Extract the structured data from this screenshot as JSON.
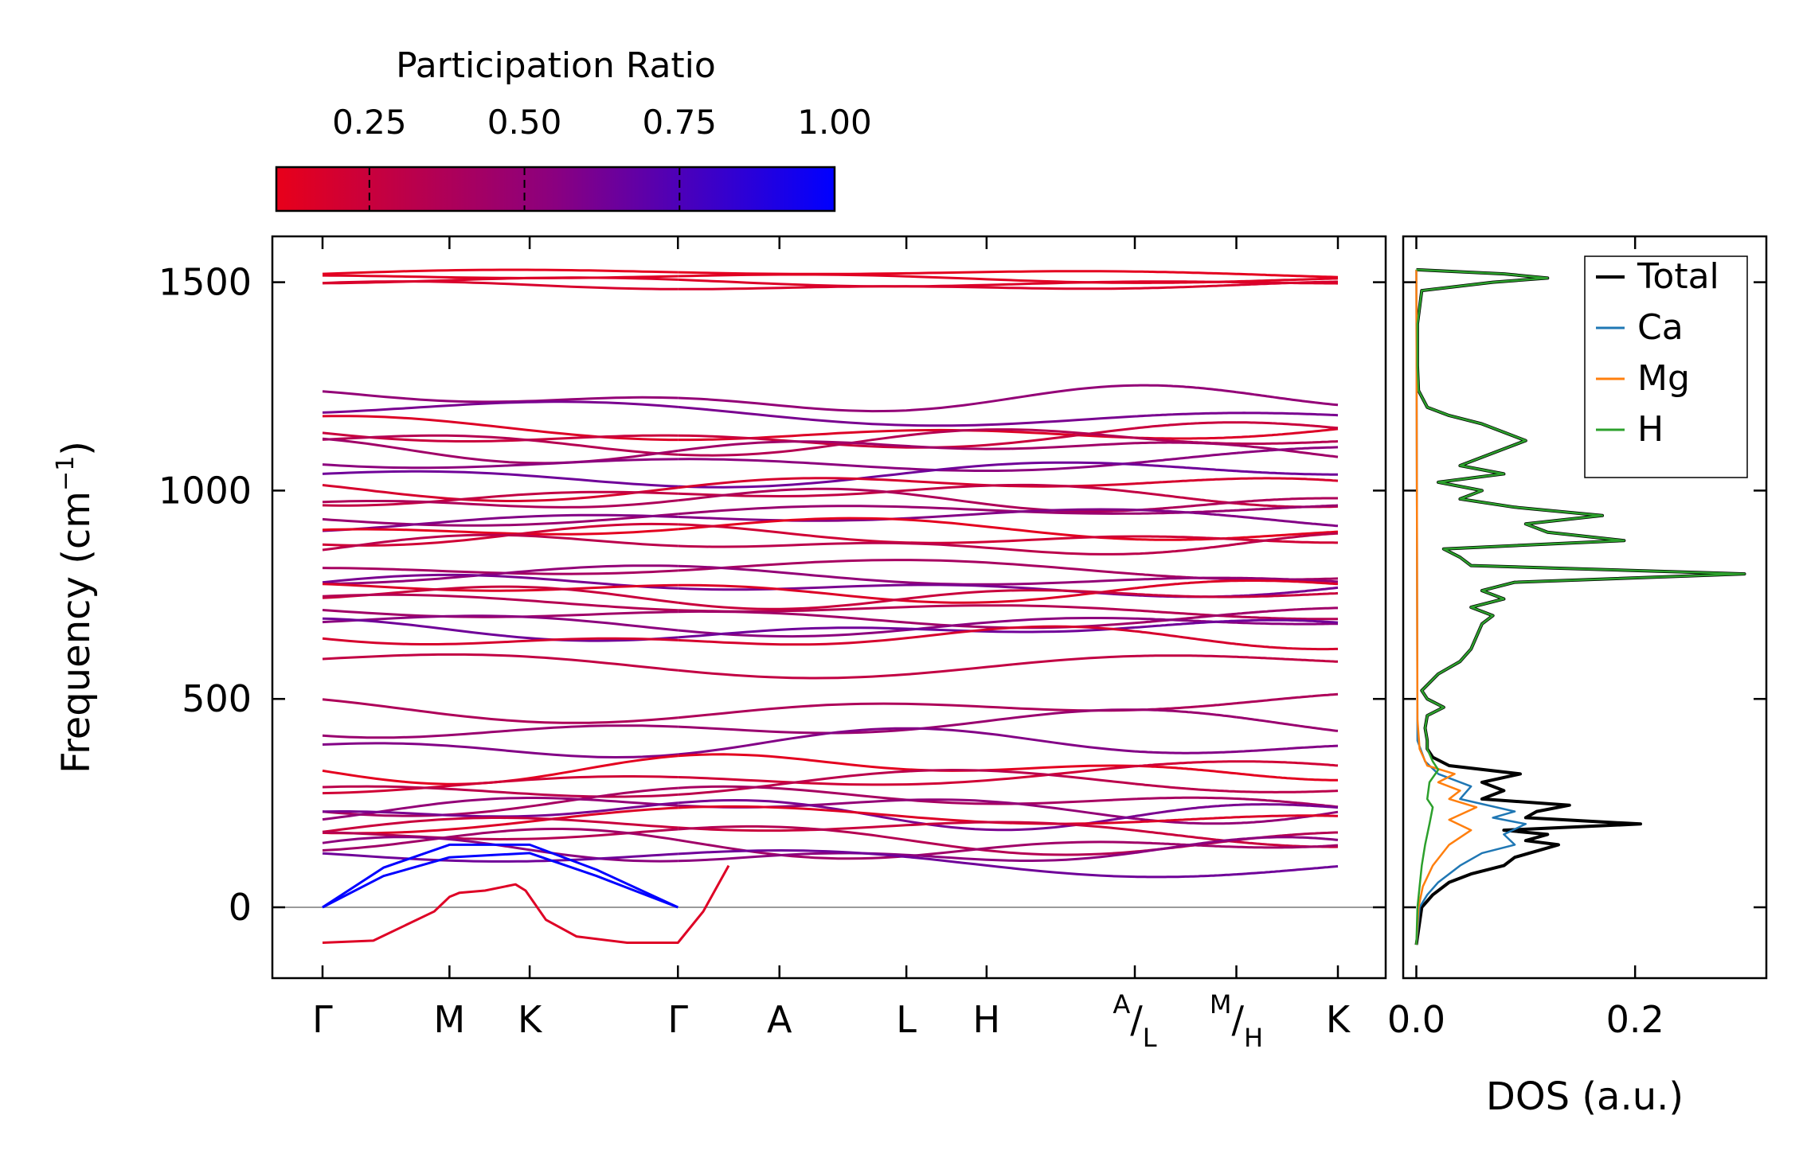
{
  "chart_data": [
    {
      "type": "line",
      "kind": "phonon-band-structure",
      "ylabel": "Frequency (cm⁻¹)",
      "ylabel_main": "Frequency (cm",
      "ylabel_sup": "−1",
      "ylabel_end": ")",
      "ylim": [
        -170,
        1610
      ],
      "yticks": [
        0,
        500,
        1000,
        1500
      ],
      "ytick_labels": [
        "0",
        "500",
        "1000",
        "1500"
      ],
      "path_labels": [
        {
          "label": "Γ",
          "q": 0.0
        },
        {
          "label": "M",
          "q": 0.125
        },
        {
          "label": "K",
          "q": 0.204
        },
        {
          "label": "Γ",
          "q": 0.35
        },
        {
          "label": "A",
          "q": 0.45
        },
        {
          "label": "L",
          "q": 0.575
        },
        {
          "label": "H",
          "q": 0.654
        },
        {
          "label": "A",
          "label_sub": "L",
          "q": 0.8
        },
        {
          "label": "M",
          "label_sub": "H",
          "q": 0.9
        },
        {
          "label": "K",
          "q": 1.0
        }
      ],
      "segment_breaks": [
        0.35,
        0.8,
        0.9
      ],
      "colorbar": {
        "label": "Participation Ratio",
        "ticks": [
          0.25,
          0.5,
          0.75,
          1.0
        ],
        "tick_labels": [
          "0.25",
          "0.50",
          "0.75",
          "1.00"
        ],
        "range": [
          0.1,
          1.0
        ],
        "color_low": "#e8001a",
        "color_mid": "#8a0080",
        "color_high": "#0000ff"
      },
      "acoustic_branches": {
        "series": [
          {
            "name": "acoustic-1 Γ-M-K-Γ",
            "x": [
              0.0,
              0.06,
              0.125,
              0.204,
              0.27,
              0.35
            ],
            "y": [
              0,
              95,
              150,
              150,
              90,
              0
            ]
          },
          {
            "name": "acoustic-2 Γ-M-K-Γ",
            "x": [
              0.0,
              0.06,
              0.125,
              0.204,
              0.27,
              0.35
            ],
            "y": [
              0,
              75,
              120,
              130,
              75,
              0
            ]
          },
          {
            "name": "imaginary-1 Γ-M-K-Γ",
            "x": [
              0.0,
              0.05,
              0.11,
              0.125,
              0.135,
              0.16,
              0.19,
              0.2,
              0.22,
              0.25,
              0.3,
              0.35,
              0.375,
              0.4
            ],
            "y": [
              -85,
              -80,
              -10,
              25,
              35,
              40,
              55,
              40,
              -30,
              -70,
              -85,
              -85,
              -10,
              100
            ]
          }
        ]
      },
      "optical_band_centers_cm-1": [
        1520,
        1510,
        1500,
        1490,
        1218,
        1185,
        1145,
        1130,
        1118,
        1100,
        1075,
        1040,
        1010,
        990,
        975,
        945,
        930,
        905,
        890,
        870,
        805,
        790,
        770,
        760,
        745,
        720,
        700,
        680,
        665,
        645,
        590,
        480,
        435,
        390,
        335,
        310,
        290,
        255,
        240,
        225,
        205,
        185,
        165,
        150,
        130,
        110
      ]
    },
    {
      "type": "line",
      "kind": "density-of-states",
      "xlabel": "DOS (a.u.)",
      "xlim": [
        -0.012,
        0.32
      ],
      "xticks": [
        0.0,
        0.2
      ],
      "xtick_labels": [
        "0.0",
        "0.2"
      ],
      "legend_position": "top-right",
      "series": [
        {
          "name": "Total",
          "color": "#000000",
          "y": [
            -90,
            0,
            30,
            60,
            80,
            100,
            120,
            135,
            150,
            160,
            175,
            185,
            200,
            215,
            230,
            245,
            260,
            280,
            300,
            320,
            340,
            360,
            380,
            400,
            430,
            460,
            480,
            500,
            520,
            560,
            590,
            620,
            680,
            700,
            720,
            740,
            760,
            780,
            800,
            820,
            840,
            860,
            880,
            900,
            920,
            940,
            960,
            980,
            1000,
            1020,
            1040,
            1060,
            1080,
            1100,
            1120,
            1140,
            1160,
            1180,
            1200,
            1240,
            1300,
            1400,
            1480,
            1500,
            1510,
            1520,
            1530
          ],
          "values": [
            0,
            0.005,
            0.015,
            0.03,
            0.05,
            0.08,
            0.09,
            0.11,
            0.13,
            0.1,
            0.12,
            0.08,
            0.205,
            0.1,
            0.11,
            0.14,
            0.06,
            0.08,
            0.06,
            0.095,
            0.03,
            0.015,
            0.01,
            0.01,
            0.008,
            0.01,
            0.025,
            0.01,
            0.005,
            0.02,
            0.04,
            0.05,
            0.06,
            0.07,
            0.05,
            0.08,
            0.06,
            0.09,
            0.3,
            0.05,
            0.04,
            0.025,
            0.19,
            0.12,
            0.1,
            0.17,
            0.09,
            0.04,
            0.06,
            0.02,
            0.08,
            0.04,
            0.06,
            0.08,
            0.1,
            0.08,
            0.06,
            0.03,
            0.01,
            0.002,
            0.001,
            0.001,
            0.005,
            0.07,
            0.12,
            0.08,
            0
          ]
        },
        {
          "name": "Ca",
          "color": "#1f77b4",
          "y": [
            -90,
            0,
            30,
            60,
            100,
            130,
            150,
            175,
            200,
            215,
            230,
            260,
            290,
            320,
            350,
            400,
            1530
          ],
          "values": [
            0,
            0.003,
            0.01,
            0.02,
            0.04,
            0.06,
            0.09,
            0.08,
            0.1,
            0.07,
            0.09,
            0.04,
            0.05,
            0.02,
            0.008,
            0.001,
            0
          ]
        },
        {
          "name": "Mg",
          "color": "#ff7f0e",
          "y": [
            -90,
            0,
            50,
            100,
            150,
            185,
            210,
            240,
            260,
            280,
            300,
            320,
            340,
            380,
            450,
            1530
          ],
          "values": [
            0,
            0.002,
            0.006,
            0.015,
            0.03,
            0.05,
            0.03,
            0.055,
            0.03,
            0.04,
            0.02,
            0.035,
            0.01,
            0.003,
            0.001,
            0
          ]
        },
        {
          "name": "H",
          "color": "#2ca02c",
          "y": [
            -90,
            0,
            50,
            100,
            150,
            200,
            240,
            260,
            300,
            330,
            350,
            380,
            400,
            430,
            460,
            480,
            500,
            520,
            560,
            590,
            620,
            680,
            700,
            720,
            740,
            760,
            780,
            800,
            820,
            840,
            860,
            880,
            900,
            920,
            940,
            960,
            980,
            1000,
            1020,
            1040,
            1060,
            1080,
            1100,
            1120,
            1140,
            1160,
            1180,
            1200,
            1240,
            1300,
            1400,
            1480,
            1500,
            1510,
            1520,
            1530
          ],
          "values": [
            0,
            0.001,
            0.003,
            0.005,
            0.008,
            0.012,
            0.015,
            0.01,
            0.012,
            0.02,
            0.015,
            0.01,
            0.01,
            0.008,
            0.01,
            0.025,
            0.01,
            0.005,
            0.02,
            0.04,
            0.05,
            0.06,
            0.07,
            0.05,
            0.08,
            0.06,
            0.09,
            0.3,
            0.05,
            0.04,
            0.025,
            0.19,
            0.12,
            0.1,
            0.17,
            0.09,
            0.04,
            0.06,
            0.02,
            0.08,
            0.04,
            0.06,
            0.08,
            0.1,
            0.08,
            0.06,
            0.03,
            0.01,
            0.002,
            0.001,
            0.001,
            0.005,
            0.07,
            0.12,
            0.08,
            0
          ]
        }
      ]
    }
  ]
}
